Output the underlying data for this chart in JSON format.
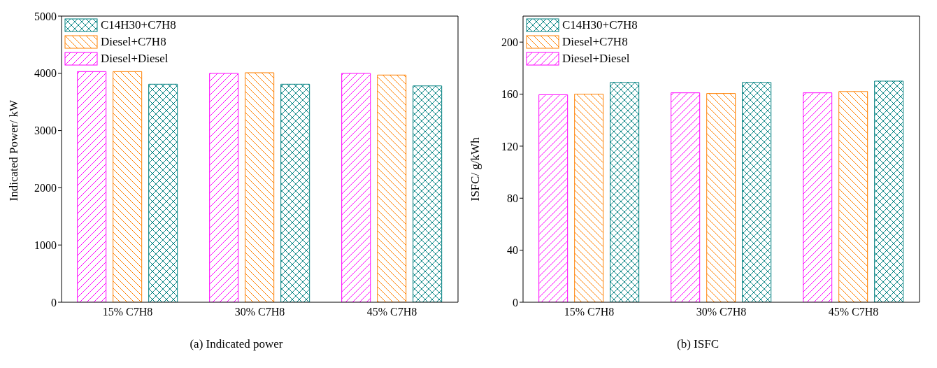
{
  "chart_data": [
    {
      "type": "bar",
      "title": "(a) Indicated power",
      "ylabel": "Indicated Power/ kW",
      "categories": [
        "15% C7H8",
        "30% C7H8",
        "45% C7H8"
      ],
      "series": [
        {
          "name": "Diesel+Diesel",
          "color": "#ff00ff",
          "values": [
            4030,
            4000,
            4000
          ]
        },
        {
          "name": "Diesel+C7H8",
          "color": "#ff8000",
          "values": [
            4030,
            4010,
            3970
          ]
        },
        {
          "name": "C14H30+C7H8",
          "color": "#008080",
          "values": [
            3810,
            3810,
            3780
          ]
        }
      ],
      "ylim": [
        0,
        5000
      ],
      "yticks": [
        0,
        1000,
        2000,
        3000,
        4000,
        5000
      ],
      "grid": false,
      "legend": "top left"
    },
    {
      "type": "bar",
      "title": "(b) ISFC",
      "ylabel": "ISFC/ g/kWh",
      "categories": [
        "15% C7H8",
        "30% C7H8",
        "45% C7H8"
      ],
      "series": [
        {
          "name": "Diesel+Diesel",
          "color": "#ff00ff",
          "values": [
            159.5,
            161,
            161
          ]
        },
        {
          "name": "Diesel+C7H8",
          "color": "#ff8000",
          "values": [
            160,
            160.5,
            162
          ]
        },
        {
          "name": "C14H30+C7H8",
          "color": "#008080",
          "values": [
            169,
            169,
            170
          ]
        }
      ],
      "ylim": [
        0,
        220
      ],
      "yticks": [
        0,
        40,
        80,
        120,
        160,
        200
      ],
      "grid": false,
      "legend": "top left"
    }
  ]
}
